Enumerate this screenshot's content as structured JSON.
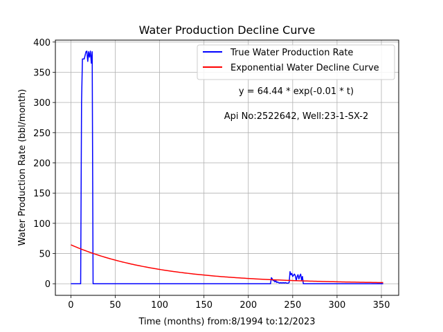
{
  "chart_data": {
    "type": "line",
    "title": "Water Production Decline Curve",
    "xlabel": "Time (months) from:8/1994 to:12/2023",
    "ylabel": "Water Production Rate (bbl/month)",
    "xlim": [
      -17.5,
      369.5
    ],
    "ylim": [
      -19.2,
      403.2
    ],
    "xticks": [
      0,
      50,
      100,
      150,
      200,
      250,
      300,
      350
    ],
    "yticks": [
      0,
      50,
      100,
      150,
      200,
      250,
      300,
      350,
      400
    ],
    "grid": true,
    "legend_position": "top-right",
    "annotations": [
      "y = 64.44 * exp(-0.01 * t)",
      "Api No:2522642, Well:23-1-SX-2"
    ],
    "series": [
      {
        "name": "True Water Production Rate",
        "color": "#0000ff",
        "points": [
          [
            0,
            0
          ],
          [
            11,
            0
          ],
          [
            12,
            300
          ],
          [
            13,
            372
          ],
          [
            14,
            372
          ],
          [
            15,
            372
          ],
          [
            16,
            378
          ],
          [
            17,
            384
          ],
          [
            18,
            385
          ],
          [
            19,
            368
          ],
          [
            20,
            384
          ],
          [
            21,
            375
          ],
          [
            22,
            385
          ],
          [
            23,
            365
          ],
          [
            24,
            384
          ],
          [
            25,
            0
          ],
          [
            225,
            0
          ],
          [
            226,
            10
          ],
          [
            227,
            8
          ],
          [
            228,
            5
          ],
          [
            229,
            6
          ],
          [
            230,
            3
          ],
          [
            231,
            5
          ],
          [
            232,
            2
          ],
          [
            233,
            3
          ],
          [
            234,
            2
          ],
          [
            235,
            1
          ],
          [
            236,
            2
          ],
          [
            237,
            1
          ],
          [
            238,
            2
          ],
          [
            239,
            1
          ],
          [
            240,
            2
          ],
          [
            241,
            1
          ],
          [
            242,
            2
          ],
          [
            243,
            1
          ],
          [
            244,
            1
          ],
          [
            245,
            1
          ],
          [
            246,
            2
          ],
          [
            247,
            20
          ],
          [
            248,
            15
          ],
          [
            249,
            17
          ],
          [
            250,
            12
          ],
          [
            251,
            14
          ],
          [
            252,
            16
          ],
          [
            253,
            13
          ],
          [
            254,
            5
          ],
          [
            255,
            12
          ],
          [
            256,
            15
          ],
          [
            257,
            8
          ],
          [
            258,
            13
          ],
          [
            259,
            16
          ],
          [
            260,
            6
          ],
          [
            261,
            12
          ],
          [
            262,
            0
          ],
          [
            352,
            0
          ]
        ]
      },
      {
        "name": "Exponential Water Decline Curve",
        "color": "#ff0000",
        "equation": {
          "a": 64.44,
          "b": 0.01
        },
        "x_range": [
          0,
          352
        ]
      }
    ]
  }
}
